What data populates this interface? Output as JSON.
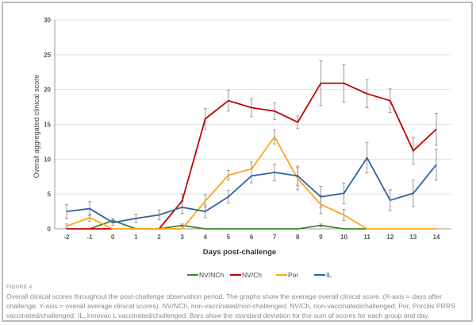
{
  "chart_data": {
    "type": "line",
    "xlabel": "Days post-challenge",
    "ylabel": "Overall aggregated clinical score",
    "x": [
      -2,
      -1,
      0,
      1,
      2,
      3,
      4,
      5,
      6,
      7,
      8,
      9,
      10,
      11,
      12,
      13,
      14
    ],
    "ylim": [
      0,
      30
    ],
    "yticks": [
      0,
      5,
      10,
      15,
      20,
      25,
      30
    ],
    "grid": true,
    "legend_position": "bottom",
    "series": [
      {
        "name": "NV/NCh",
        "color": "#3a8a2e",
        "values": [
          null,
          0,
          1.2,
          0,
          0,
          0.5,
          0,
          0,
          0,
          0,
          0,
          0.5,
          0,
          0,
          null,
          null,
          null
        ],
        "error": [
          null,
          0,
          0.3,
          0,
          0,
          0.2,
          0,
          0,
          0,
          0,
          0,
          0.2,
          0,
          0,
          null,
          null,
          null
        ]
      },
      {
        "name": "NV/Ch",
        "color": "#c00000",
        "values": [
          0,
          0,
          0,
          null,
          0,
          4,
          15.8,
          18.4,
          17.4,
          16.9,
          15.3,
          20.9,
          20.9,
          19.4,
          18.4,
          11.2,
          14.3
        ],
        "error": [
          0,
          0,
          0,
          null,
          0,
          1,
          1.5,
          1.5,
          1.3,
          1.2,
          0.9,
          3.2,
          2.7,
          2,
          1.7,
          1.9,
          2.3
        ]
      },
      {
        "name": "Por",
        "color": "#ffa31a",
        "values": [
          0.4,
          1.6,
          0,
          0,
          0,
          0,
          4,
          7.7,
          8.6,
          13.2,
          7.2,
          3.5,
          2,
          0,
          0,
          0,
          0
        ],
        "error": [
          0.3,
          0.5,
          0,
          0,
          0,
          0,
          0.9,
          0.7,
          1,
          1,
          1.6,
          1.3,
          0.8,
          0,
          0,
          0,
          0
        ]
      },
      {
        "name": "IL",
        "color": "#2e64a0",
        "values": [
          2.5,
          2.9,
          0.9,
          1.5,
          2,
          3.1,
          2.5,
          4.6,
          7.6,
          8.1,
          7.6,
          4.6,
          5.1,
          10.2,
          4.1,
          5.1,
          9.2
        ],
        "error": [
          1,
          1,
          0.4,
          0.6,
          0.7,
          0.9,
          0.9,
          0.9,
          1,
          1.2,
          1.4,
          1.5,
          1.5,
          2.2,
          1.5,
          1.9,
          2.2
        ]
      }
    ]
  },
  "figure_label": "FIGURE 4",
  "caption": "Overall clinical scores throughout the post-challenge observation period. The graphs show the average overall clinical score. (X-axis = days after challenge; Y-axis = overall average clinical scores). NV/NCh, non-vaccinated/non-challenged; NV/Ch, non-vaccinated/challenged; Por, Porcilis PRRS vaccinated/challenged; IL, Innovac L vaccinated/challenged. Bars show the standard deviation for the sum of scores for each group and day."
}
